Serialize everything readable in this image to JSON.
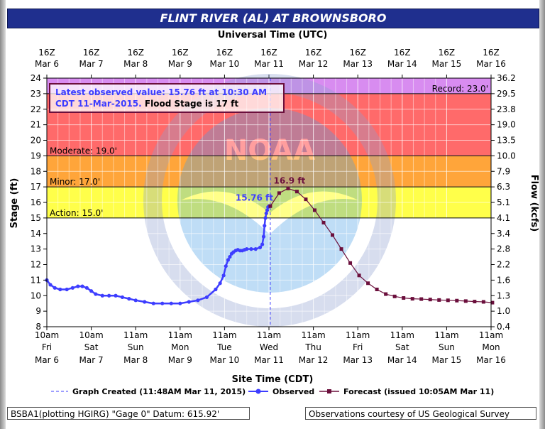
{
  "title": "FLINT RIVER (AL) AT BROWNSBORO",
  "utc_axis_label": "Universal Time (UTC)",
  "cdt_axis_label": "Site Time (CDT)",
  "utc_ticks": [
    {
      "hour": "16Z",
      "day": "Mar 6"
    },
    {
      "hour": "16Z",
      "day": "Mar 7"
    },
    {
      "hour": "16Z",
      "day": "Mar 8"
    },
    {
      "hour": "16Z",
      "day": "Mar 9"
    },
    {
      "hour": "16Z",
      "day": "Mar 10"
    },
    {
      "hour": "16Z",
      "day": "Mar 11"
    },
    {
      "hour": "16Z",
      "day": "Mar 12"
    },
    {
      "hour": "16Z",
      "day": "Mar 13"
    },
    {
      "hour": "16Z",
      "day": "Mar 14"
    },
    {
      "hour": "16Z",
      "day": "Mar 15"
    },
    {
      "hour": "16Z",
      "day": "Mar 16"
    }
  ],
  "cdt_ticks": [
    {
      "time": "10am",
      "dow": "Fri",
      "date": "Mar 6"
    },
    {
      "time": "10am",
      "dow": "Sat",
      "date": "Mar 7"
    },
    {
      "time": "11am",
      "dow": "Sun",
      "date": "Mar 8"
    },
    {
      "time": "11am",
      "dow": "Mon",
      "date": "Mar 9"
    },
    {
      "time": "11am",
      "dow": "Tue",
      "date": "Mar 10"
    },
    {
      "time": "11am",
      "dow": "Wed",
      "date": "Mar 11"
    },
    {
      "time": "11am",
      "dow": "Thu",
      "date": "Mar 12"
    },
    {
      "time": "11am",
      "dow": "Fri",
      "date": "Mar 13"
    },
    {
      "time": "11am",
      "dow": "Sat",
      "date": "Mar 14"
    },
    {
      "time": "11am",
      "dow": "Sun",
      "date": "Mar 15"
    },
    {
      "time": "11am",
      "dow": "Mon",
      "date": "Mar 16"
    }
  ],
  "info_box": {
    "line1": "Latest observed value: 15.76 ft at 10:30 AM",
    "line2a": "CDT 11-Mar-2015.",
    "line2b": " Flood Stage is 17 ft"
  },
  "legend": {
    "created": "Graph Created (11:48AM Mar 11, 2015)",
    "observed": "Observed",
    "forecast": "Forecast (issued 10:05AM Mar 11)"
  },
  "footer": {
    "left": "BSBA1(plotting HGIRG) \"Gage 0\" Datum: 615.92'",
    "right": "Observations courtesy of US Geological Survey"
  },
  "watermark_text": "NOAA",
  "colors": {
    "record": "#d88cf0",
    "major": "#ff6a6a",
    "moderate": "#ffa53a",
    "minor": "#ffff4a",
    "observed": "#3d3dff",
    "forecast": "#6b0f3c",
    "created_line": "#3d3dff",
    "title_bar": "#1f2f8e"
  },
  "chart_data": {
    "type": "line",
    "title": "FLINT RIVER (AL) AT BROWNSBORO",
    "ylabel": "Stage (ft)",
    "y2label": "Flow (kcfs)",
    "xlabel": "Site Time (CDT)",
    "ylim": [
      8,
      24
    ],
    "x_unit": "days since 10am Fri Mar 6 (CDT)",
    "xlim": [
      0,
      10
    ],
    "yticks": [
      8,
      9,
      10,
      11,
      12,
      13,
      14,
      15,
      16,
      17,
      18,
      19,
      20,
      21,
      22,
      23,
      24
    ],
    "flow_ticks": [
      {
        "stage": 8,
        "label": "0.4"
      },
      {
        "stage": 9,
        "label": "1.0"
      },
      {
        "stage": 10,
        "label": "1.3"
      },
      {
        "stage": 11,
        "label": "1.6"
      },
      {
        "stage": 12,
        "label": "2.2"
      },
      {
        "stage": 13,
        "label": "2.8"
      },
      {
        "stage": 14,
        "label": "3.4"
      },
      {
        "stage": 15,
        "label": "4.1"
      },
      {
        "stage": 16,
        "label": "5.1"
      },
      {
        "stage": 17,
        "label": "6.3"
      },
      {
        "stage": 18,
        "label": "7.9"
      },
      {
        "stage": 19,
        "label": "10.0"
      },
      {
        "stage": 20,
        "label": "13.5"
      },
      {
        "stage": 21,
        "label": "19.0"
      },
      {
        "stage": 22,
        "label": "23.8"
      },
      {
        "stage": 23,
        "label": "29.5"
      },
      {
        "stage": 24,
        "label": "36.2"
      }
    ],
    "flood_levels": [
      {
        "name": "Action",
        "stage": 15.0,
        "label": "Action: 15.0'"
      },
      {
        "name": "Minor",
        "stage": 17.0,
        "label": "Minor: 17.0'"
      },
      {
        "name": "Moderate",
        "stage": 19.0,
        "label": "Moderate: 19.0'"
      },
      {
        "name": "Record",
        "stage": 23.0,
        "label": "Record: 23.0'"
      }
    ],
    "created_x": 5.03,
    "series": [
      {
        "name": "Observed",
        "x": [
          0,
          0.08,
          0.18,
          0.3,
          0.45,
          0.58,
          0.7,
          0.8,
          0.9,
          1.0,
          1.1,
          1.25,
          1.4,
          1.55,
          1.7,
          1.85,
          2.0,
          2.2,
          2.4,
          2.6,
          2.8,
          3.0,
          3.2,
          3.4,
          3.6,
          3.8,
          3.9,
          3.98,
          4.03,
          4.08,
          4.12,
          4.16,
          4.2,
          4.25,
          4.3,
          4.35,
          4.4,
          4.45,
          4.5,
          4.6,
          4.7,
          4.8,
          4.85,
          4.88,
          4.9,
          4.92,
          4.94,
          4.96,
          4.98,
          5.0
        ],
        "y": [
          11.0,
          10.7,
          10.5,
          10.4,
          10.4,
          10.5,
          10.6,
          10.6,
          10.5,
          10.3,
          10.1,
          10.0,
          10.0,
          10.0,
          9.9,
          9.8,
          9.7,
          9.6,
          9.5,
          9.5,
          9.5,
          9.5,
          9.6,
          9.7,
          9.9,
          10.4,
          10.8,
          11.3,
          11.9,
          12.3,
          12.5,
          12.7,
          12.8,
          12.9,
          12.95,
          12.9,
          12.9,
          12.95,
          13.0,
          13.0,
          13.0,
          13.1,
          13.3,
          13.8,
          14.5,
          15.0,
          15.3,
          15.5,
          15.7,
          15.76
        ],
        "label": "15.76 ft"
      },
      {
        "name": "Forecast",
        "x": [
          5.03,
          5.23,
          5.43,
          5.63,
          5.83,
          6.03,
          6.23,
          6.43,
          6.63,
          6.83,
          7.03,
          7.23,
          7.43,
          7.63,
          7.83,
          8.03,
          8.23,
          8.43,
          8.63,
          8.83,
          9.03,
          9.23,
          9.43,
          9.63,
          9.83,
          10.03
        ],
        "y": [
          15.76,
          16.6,
          16.9,
          16.7,
          16.2,
          15.5,
          14.7,
          13.9,
          13.0,
          12.1,
          11.3,
          10.8,
          10.4,
          10.1,
          9.95,
          9.85,
          9.8,
          9.78,
          9.75,
          9.72,
          9.7,
          9.68,
          9.65,
          9.62,
          9.6,
          9.55
        ],
        "peak_label": "16.9 ft"
      }
    ]
  }
}
